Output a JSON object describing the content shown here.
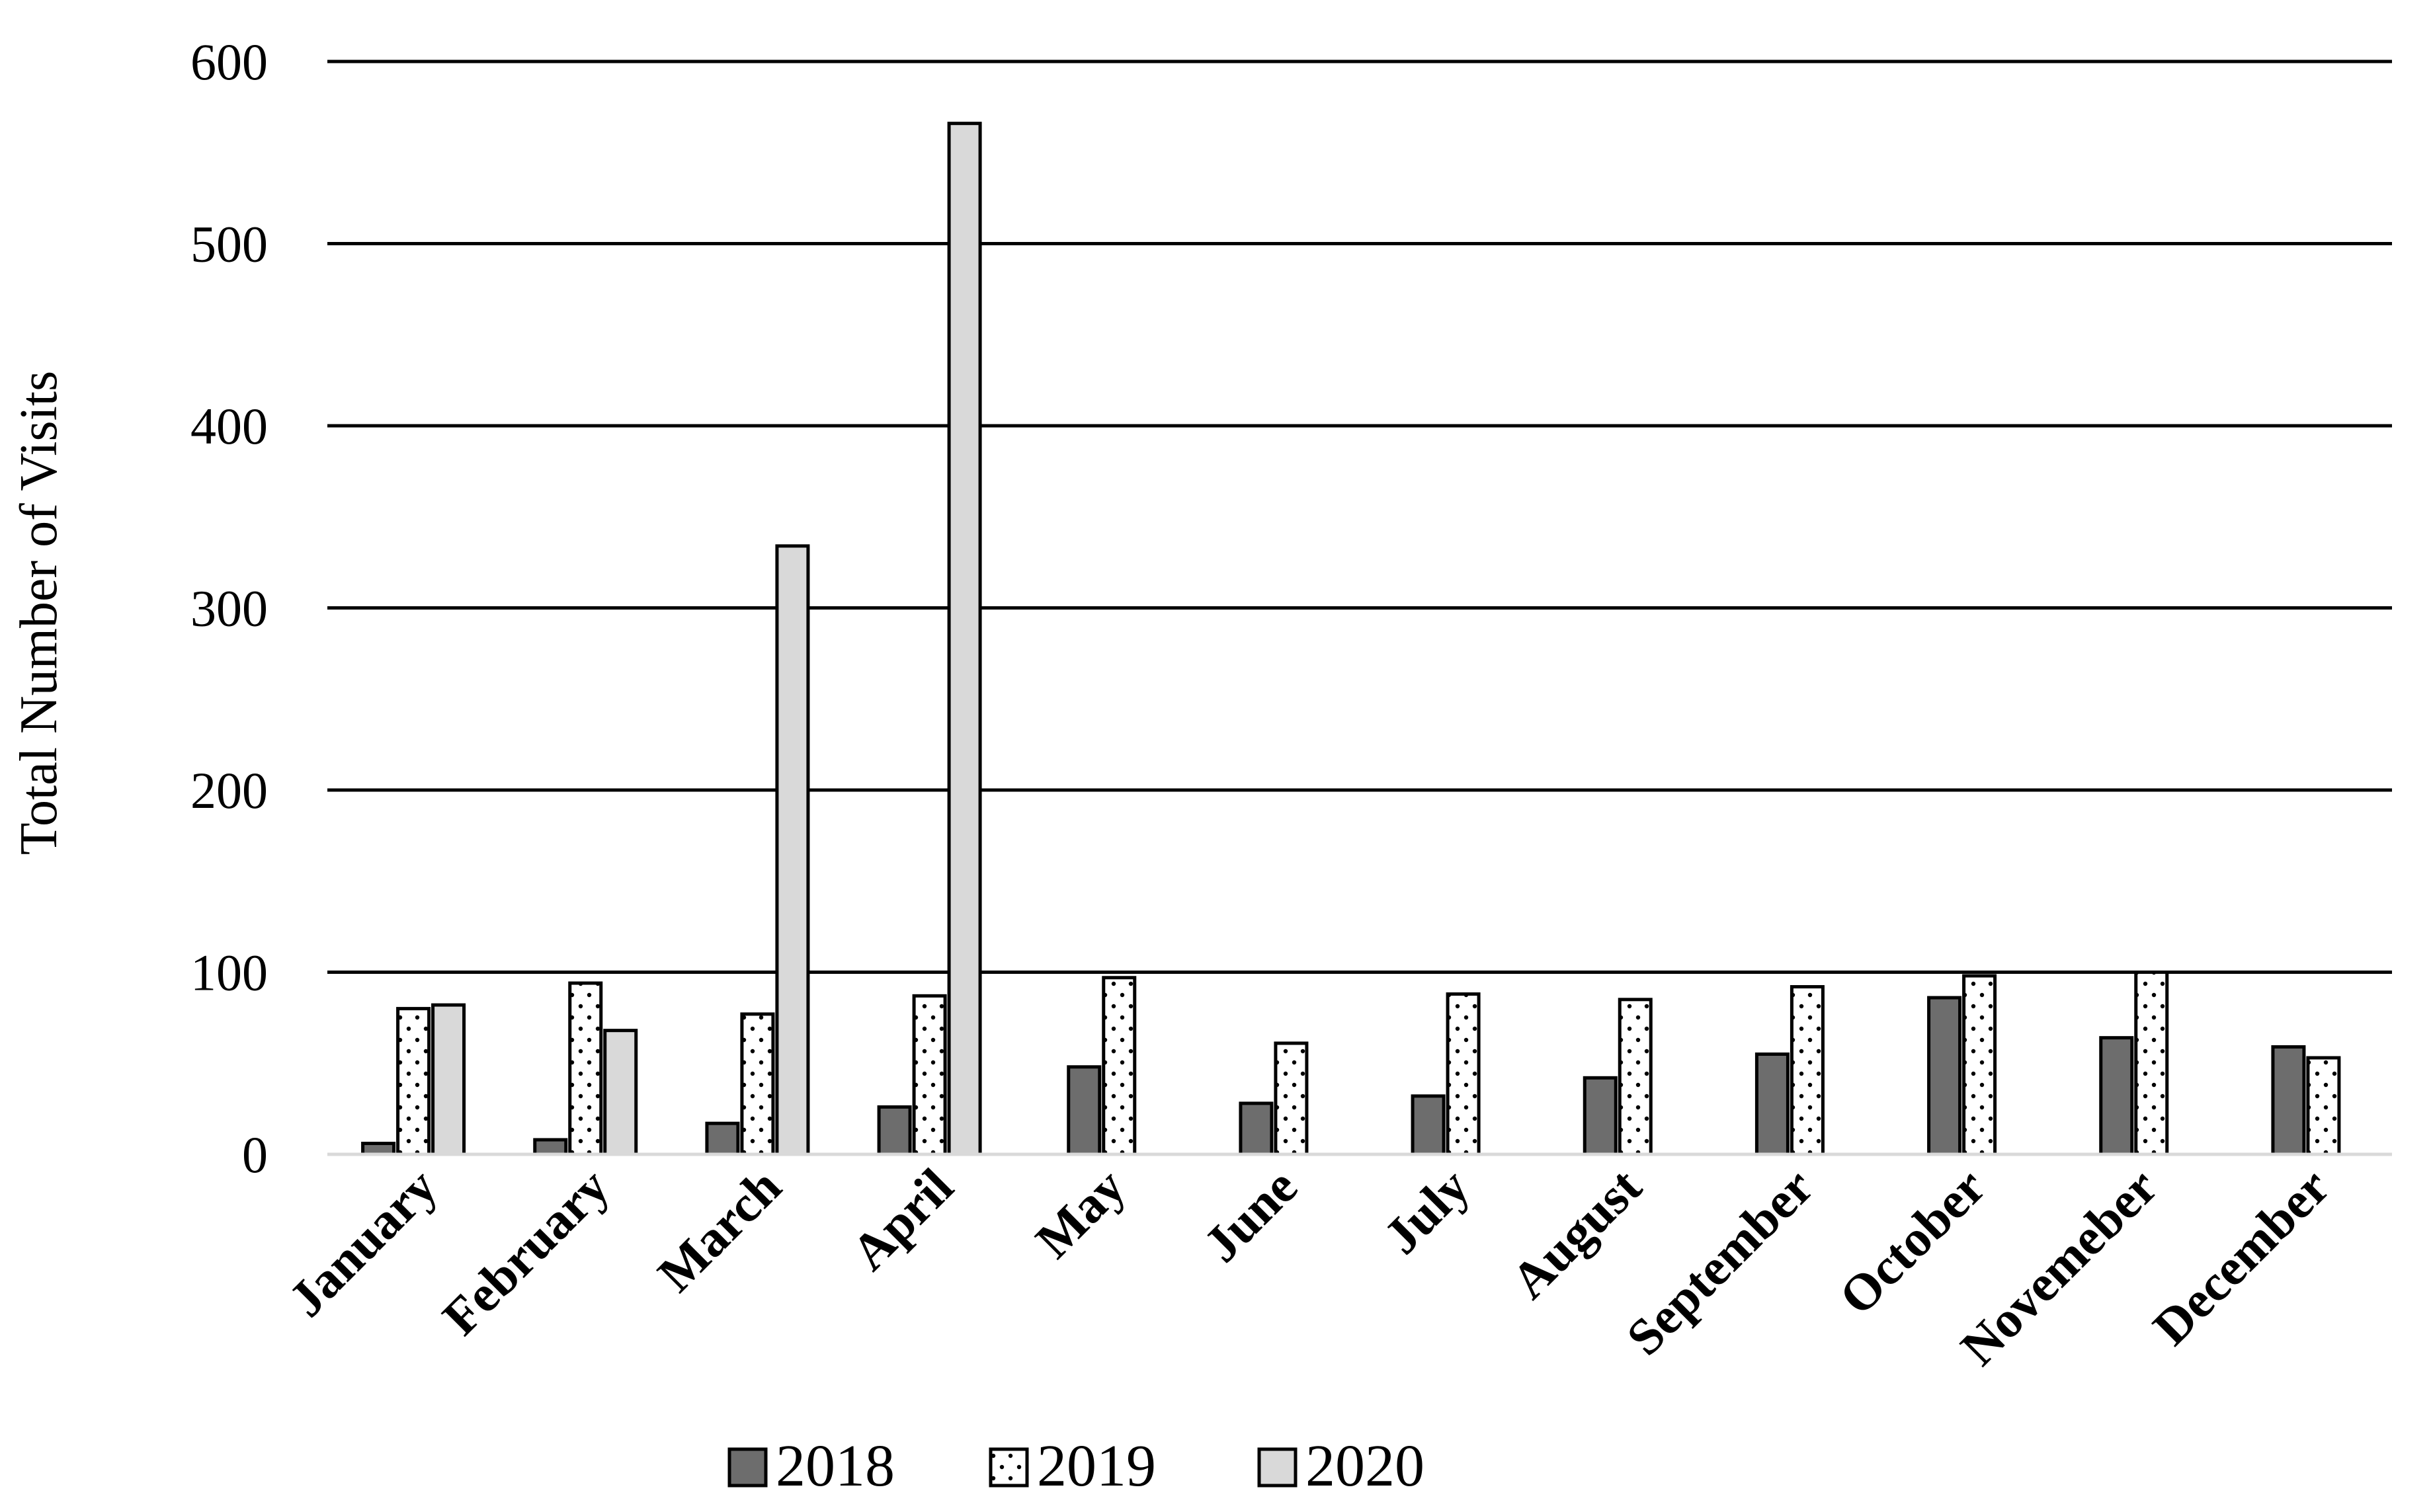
{
  "chart_data": {
    "type": "bar",
    "title": "",
    "xlabel": "",
    "ylabel": "Total Number of Visits",
    "ylim": [
      0,
      600
    ],
    "yticks": [
      0,
      100,
      200,
      300,
      400,
      500,
      600
    ],
    "grid": true,
    "legend_position": "bottom",
    "categories": [
      "January",
      "February",
      "March",
      "April",
      "May",
      "June",
      "July",
      "August",
      "September",
      "October",
      "Novemeber",
      "December"
    ],
    "series": [
      {
        "name": "2018",
        "color": "#6d6d6d",
        "pattern": "solid",
        "values": [
          6,
          8,
          17,
          26,
          48,
          28,
          32,
          42,
          55,
          86,
          64,
          59
        ]
      },
      {
        "name": "2019",
        "color": "#ffffff",
        "pattern": "dotted",
        "values": [
          80,
          94,
          77,
          87,
          97,
          61,
          88,
          85,
          92,
          98,
          100,
          53
        ]
      },
      {
        "name": "2020",
        "color": "#d9d9d9",
        "pattern": "solid",
        "values": [
          82,
          68,
          334,
          566,
          null,
          null,
          null,
          null,
          null,
          null,
          null,
          null
        ]
      }
    ]
  }
}
